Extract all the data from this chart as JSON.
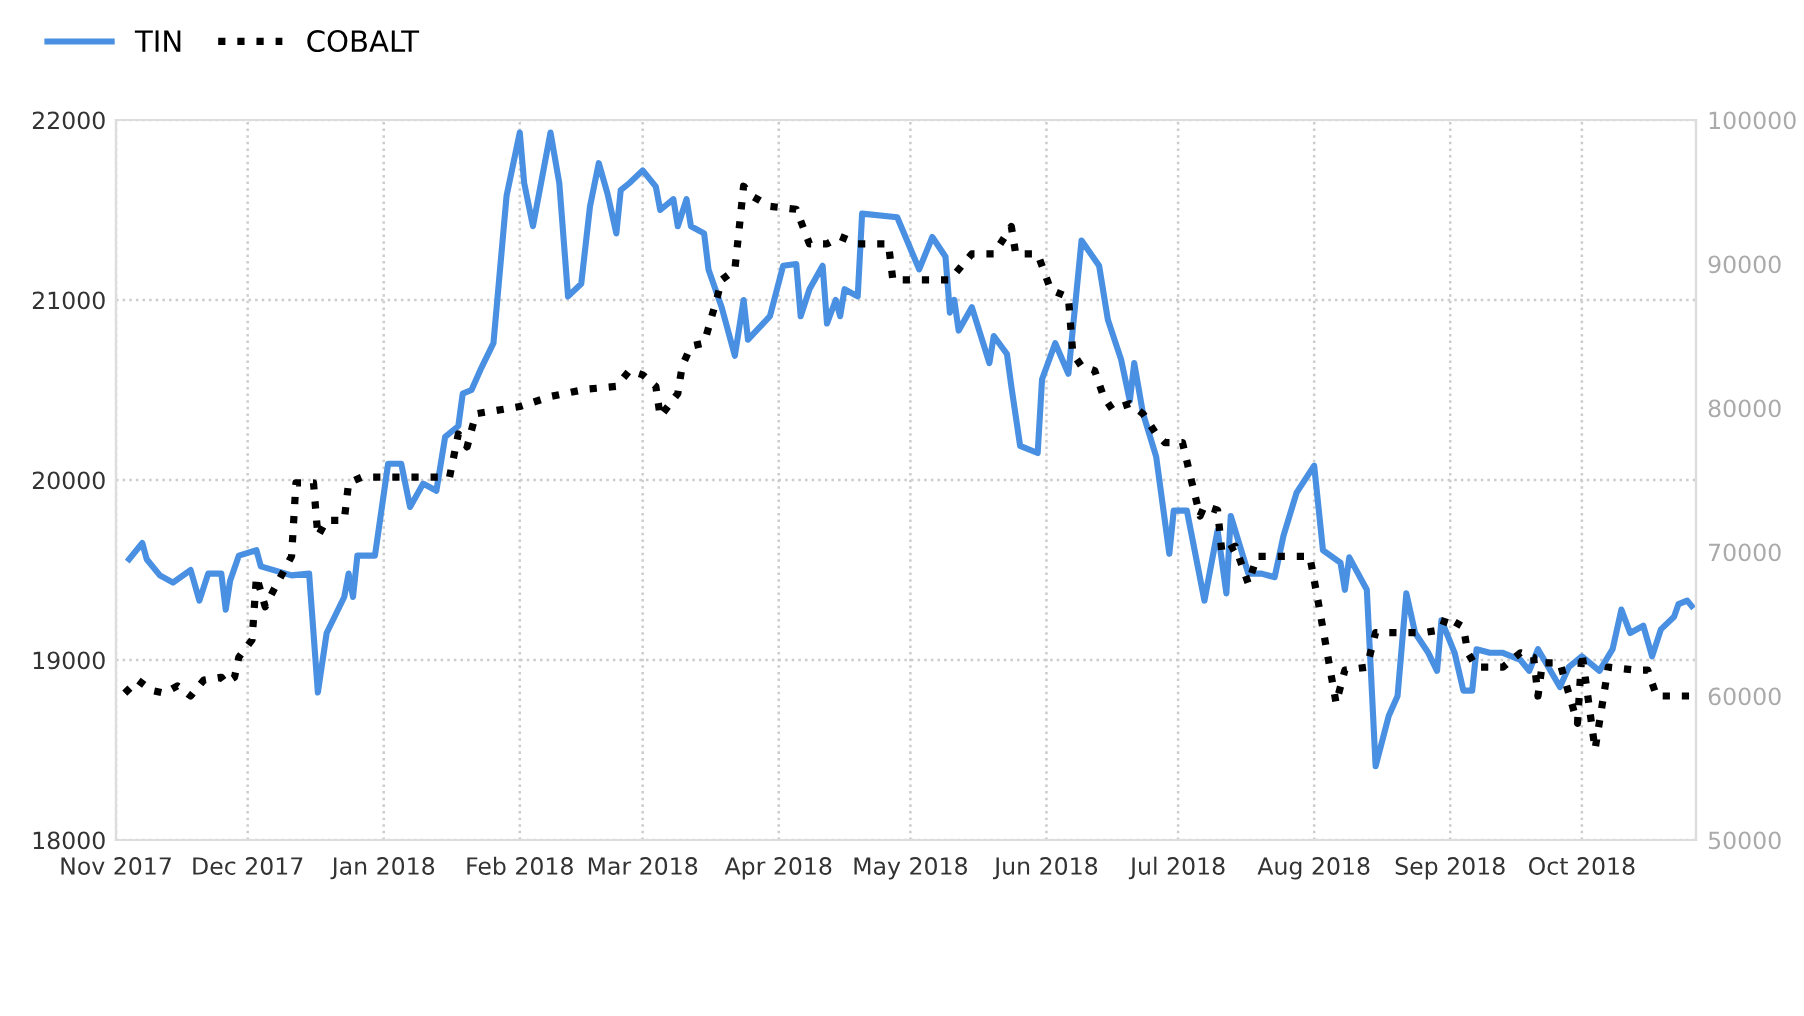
{
  "chart_data": {
    "type": "line",
    "xlim": [
      "2017-11-01",
      "2018-10-27"
    ],
    "xticks": [
      {
        "value": "2017-11-01",
        "label": "Nov 2017"
      },
      {
        "value": "2017-12-01",
        "label": "Dec 2017"
      },
      {
        "value": "2018-01-01",
        "label": "Jan 2018"
      },
      {
        "value": "2018-02-01",
        "label": "Feb 2018"
      },
      {
        "value": "2018-03-01",
        "label": "Mar 2018"
      },
      {
        "value": "2018-04-01",
        "label": "Apr 2018"
      },
      {
        "value": "2018-05-01",
        "label": "May 2018"
      },
      {
        "value": "2018-06-01",
        "label": "Jun 2018"
      },
      {
        "value": "2018-07-01",
        "label": "Jul 2018"
      },
      {
        "value": "2018-08-01",
        "label": "Aug 2018"
      },
      {
        "value": "2018-09-01",
        "label": "Sep 2018"
      },
      {
        "value": "2018-10-01",
        "label": "Oct 2018"
      }
    ],
    "ylim": [
      18000,
      22000
    ],
    "yticks": [
      18000,
      19000,
      20000,
      21000,
      22000
    ],
    "y2lim": [
      50000,
      100000
    ],
    "y2ticks": [
      50000,
      60000,
      70000,
      80000,
      90000,
      100000
    ],
    "grid": true,
    "legend": "top left",
    "series": [
      {
        "name": "TIN",
        "color": "#4a90e2",
        "line_style": "solid",
        "x": [
          "2017-11-04",
          "2017-11-07",
          "2017-11-08",
          "2017-11-11",
          "2017-11-14",
          "2017-11-18",
          "2017-11-20",
          "2017-11-22",
          "2017-11-25",
          "2017-11-26",
          "2017-11-27",
          "2017-11-29",
          "2017-12-03",
          "2017-12-04",
          "2017-12-11",
          "2017-12-15",
          "2017-12-17",
          "2017-12-19",
          "2017-12-23",
          "2017-12-24",
          "2017-12-25",
          "2017-12-26",
          "2017-12-30",
          "2018-01-02",
          "2018-01-05",
          "2018-01-07",
          "2018-01-10",
          "2018-01-13",
          "2018-01-15",
          "2018-01-18",
          "2018-01-19",
          "2018-01-21",
          "2018-01-23",
          "2018-01-26",
          "2018-01-29",
          "2018-02-01",
          "2018-02-02",
          "2018-02-04",
          "2018-02-08",
          "2018-02-10",
          "2018-02-12",
          "2018-02-15",
          "2018-02-17",
          "2018-02-19",
          "2018-02-21",
          "2018-02-23",
          "2018-02-24",
          "2018-02-26",
          "2018-03-01",
          "2018-03-04",
          "2018-03-05",
          "2018-03-08",
          "2018-03-09",
          "2018-03-11",
          "2018-03-12",
          "2018-03-15",
          "2018-03-16",
          "2018-03-19",
          "2018-03-22",
          "2018-03-24",
          "2018-03-25",
          "2018-03-30",
          "2018-04-02",
          "2018-04-05",
          "2018-04-06",
          "2018-04-08",
          "2018-04-11",
          "2018-04-12",
          "2018-04-14",
          "2018-04-15",
          "2018-04-16",
          "2018-04-19",
          "2018-04-20",
          "2018-04-28",
          "2018-05-03",
          "2018-05-06",
          "2018-05-09",
          "2018-05-10",
          "2018-05-11",
          "2018-05-12",
          "2018-05-15",
          "2018-05-19",
          "2018-05-20",
          "2018-05-23",
          "2018-05-24",
          "2018-05-26",
          "2018-05-30",
          "2018-05-31",
          "2018-06-03",
          "2018-06-06",
          "2018-06-09",
          "2018-06-13",
          "2018-06-15",
          "2018-06-18",
          "2018-06-20",
          "2018-06-21",
          "2018-06-23",
          "2018-06-26",
          "2018-06-29",
          "2018-06-30",
          "2018-07-03",
          "2018-07-07",
          "2018-07-10",
          "2018-07-12",
          "2018-07-13",
          "2018-07-17",
          "2018-07-20",
          "2018-07-23",
          "2018-07-25",
          "2018-07-28",
          "2018-08-01",
          "2018-08-03",
          "2018-08-07",
          "2018-08-08",
          "2018-08-09",
          "2018-08-13",
          "2018-08-15",
          "2018-08-18",
          "2018-08-20",
          "2018-08-22",
          "2018-08-24",
          "2018-08-27",
          "2018-08-29",
          "2018-08-30",
          "2018-09-02",
          "2018-09-04",
          "2018-09-06",
          "2018-09-07",
          "2018-09-10",
          "2018-09-13",
          "2018-09-17",
          "2018-09-19",
          "2018-09-21",
          "2018-09-26",
          "2018-09-28",
          "2018-10-01",
          "2018-10-05",
          "2018-10-08",
          "2018-10-10",
          "2018-10-12",
          "2018-10-15",
          "2018-10-17",
          "2018-10-19",
          "2018-10-22",
          "2018-10-23",
          "2018-10-25",
          "2018-10-26"
        ],
        "values": [
          19560,
          19650,
          19560,
          19470,
          19430,
          19500,
          19330,
          19480,
          19480,
          19280,
          19440,
          19580,
          19610,
          19520,
          19470,
          19480,
          18820,
          19150,
          19350,
          19480,
          19350,
          19580,
          19580,
          20090,
          20090,
          19850,
          19980,
          19940,
          20240,
          20300,
          20480,
          20500,
          20610,
          20760,
          21580,
          21930,
          21650,
          21410,
          21930,
          21650,
          21020,
          21090,
          21520,
          21760,
          21590,
          21370,
          21610,
          21650,
          21720,
          21630,
          21500,
          21560,
          21410,
          21560,
          21410,
          21370,
          21170,
          20960,
          20690,
          21000,
          20780,
          20910,
          21190,
          21200,
          20910,
          21060,
          21190,
          20870,
          21000,
          20910,
          21060,
          21020,
          21480,
          21460,
          21170,
          21350,
          21240,
          20930,
          21000,
          20830,
          20960,
          20650,
          20800,
          20700,
          20520,
          20190,
          20150,
          20560,
          20760,
          20590,
          21330,
          21190,
          20890,
          20670,
          20440,
          20650,
          20370,
          20130,
          19590,
          19830,
          19830,
          19330,
          19720,
          19370,
          19800,
          19480,
          19480,
          19460,
          19690,
          19930,
          20080,
          19610,
          19540,
          19390,
          19570,
          19390,
          18410,
          18690,
          18800,
          19370,
          19150,
          19040,
          18940,
          19220,
          19040,
          18830,
          18830,
          19060,
          19040,
          19040,
          19000,
          18940,
          19060,
          18850,
          18960,
          19020,
          18940,
          19060,
          19280,
          19150,
          19190,
          19020,
          19170,
          19240,
          19310,
          19330,
          19300
        ]
      },
      {
        "name": "COBALT",
        "color": "#000000",
        "line_style": "dotted",
        "axis": "y2",
        "x": [
          "2017-11-03",
          "2017-11-06",
          "2017-11-09",
          "2017-11-12",
          "2017-11-15",
          "2017-11-18",
          "2017-11-21",
          "2017-11-25",
          "2017-11-26",
          "2017-11-28",
          "2017-11-29",
          "2017-12-02",
          "2017-12-03",
          "2017-12-05",
          "2017-12-07",
          "2017-12-11",
          "2017-12-12",
          "2017-12-16",
          "2017-12-17",
          "2017-12-19",
          "2017-12-23",
          "2017-12-24",
          "2017-12-27",
          "2018-01-16",
          "2018-01-18",
          "2018-01-20",
          "2018-01-22",
          "2018-02-01",
          "2018-02-08",
          "2018-02-16",
          "2018-02-23",
          "2018-02-26",
          "2018-03-01",
          "2018-03-04",
          "2018-03-05",
          "2018-03-09",
          "2018-03-10",
          "2018-03-12",
          "2018-03-15",
          "2018-03-18",
          "2018-03-19",
          "2018-03-22",
          "2018-03-24",
          "2018-03-26",
          "2018-03-30",
          "2018-04-05",
          "2018-04-08",
          "2018-04-12",
          "2018-04-15",
          "2018-04-19",
          "2018-04-26",
          "2018-04-27",
          "2018-05-10",
          "2018-05-15",
          "2018-05-20",
          "2018-05-24",
          "2018-05-25",
          "2018-05-30",
          "2018-06-02",
          "2018-06-06",
          "2018-06-07",
          "2018-06-09",
          "2018-06-12",
          "2018-06-14",
          "2018-06-16",
          "2018-06-20",
          "2018-06-23",
          "2018-06-26",
          "2018-06-28",
          "2018-07-02",
          "2018-07-04",
          "2018-07-06",
          "2018-07-07",
          "2018-07-10",
          "2018-07-11",
          "2018-07-14",
          "2018-07-17",
          "2018-07-19",
          "2018-07-31",
          "2018-08-02",
          "2018-08-06",
          "2018-08-08",
          "2018-08-13",
          "2018-08-15",
          "2018-08-26",
          "2018-08-30",
          "2018-08-31",
          "2018-09-04",
          "2018-09-05",
          "2018-09-07",
          "2018-09-13",
          "2018-09-17",
          "2018-09-20",
          "2018-09-21",
          "2018-09-22",
          "2018-09-26",
          "2018-09-30",
          "2018-10-01",
          "2018-10-04",
          "2018-10-07",
          "2018-10-13",
          "2018-10-16",
          "2018-10-18",
          "2018-10-26"
        ],
        "values": [
          60200,
          61100,
          60400,
          60200,
          60700,
          60000,
          61100,
          61300,
          60900,
          61300,
          62700,
          63900,
          68300,
          66200,
          67400,
          69700,
          74800,
          74800,
          71100,
          72200,
          72200,
          74800,
          75200,
          75200,
          78200,
          77300,
          79600,
          80100,
          80800,
          81300,
          81500,
          82600,
          82300,
          81500,
          79400,
          81000,
          82900,
          84300,
          84500,
          87700,
          88900,
          89600,
          95400,
          94700,
          94000,
          93800,
          91400,
          91400,
          91900,
          91400,
          91400,
          88900,
          88900,
          90700,
          90700,
          92600,
          90700,
          90700,
          88200,
          87700,
          83800,
          82900,
          82600,
          80800,
          79900,
          80300,
          79600,
          78200,
          77600,
          77600,
          75000,
          72500,
          73200,
          72900,
          69900,
          70400,
          67800,
          69700,
          69700,
          66400,
          59500,
          61800,
          62000,
          64400,
          64400,
          64600,
          65500,
          64800,
          63000,
          62000,
          62000,
          63000,
          62700,
          60000,
          62300,
          62300,
          58100,
          63000,
          56300,
          62000,
          61800,
          61800,
          60000,
          60000
        ]
      }
    ]
  }
}
